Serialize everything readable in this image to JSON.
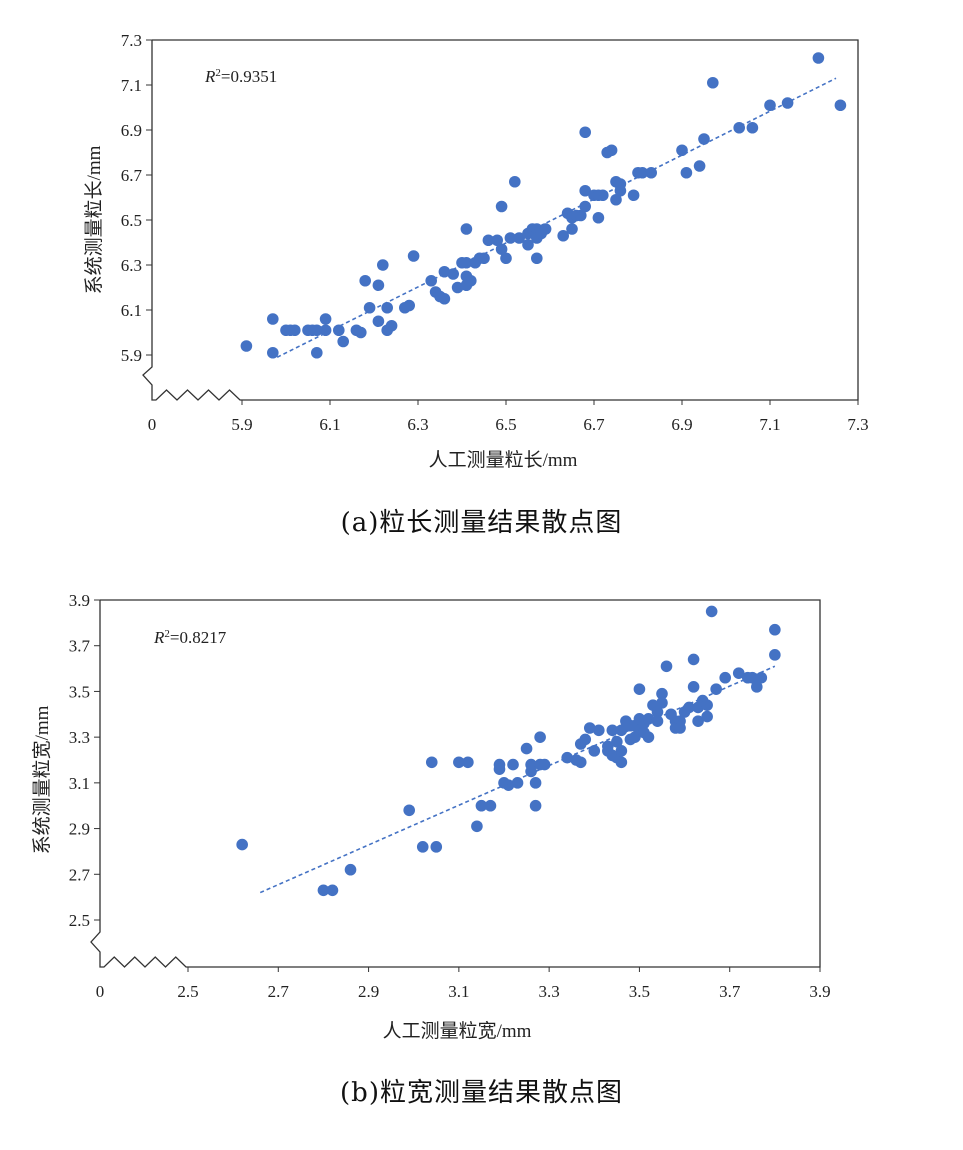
{
  "chart_data": [
    {
      "type": "scatter",
      "caption": "(a)粒长测量结果散点图",
      "xlabel": "人工测量粒长/mm",
      "ylabel": "系统测量粒长/mm",
      "r2_label": "R²=0.9351",
      "r2_prefix": "R",
      "r2_sup": "2",
      "r2_value": "=0.9351",
      "x_origin_label": "0",
      "xlim": [
        5.9,
        7.3
      ],
      "ylim": [
        5.9,
        7.3
      ],
      "x_ticks": [
        "5.9",
        "6.1",
        "6.3",
        "6.5",
        "6.7",
        "6.9",
        "7.1",
        "7.3"
      ],
      "y_ticks": [
        "5.9",
        "6.1",
        "6.3",
        "6.5",
        "6.7",
        "6.9",
        "7.1",
        "7.3"
      ],
      "trendline": {
        "x": [
          5.98,
          7.25
        ],
        "y": [
          5.89,
          7.13
        ]
      },
      "marker_color": "#4472C4",
      "trend_color": "#4472C4",
      "points": [
        [
          5.91,
          5.94
        ],
        [
          5.97,
          6.06
        ],
        [
          5.97,
          5.91
        ],
        [
          6.0,
          6.01
        ],
        [
          6.01,
          6.01
        ],
        [
          6.02,
          6.01
        ],
        [
          6.05,
          6.01
        ],
        [
          6.06,
          6.01
        ],
        [
          6.07,
          6.01
        ],
        [
          6.07,
          5.91
        ],
        [
          6.09,
          6.01
        ],
        [
          6.09,
          6.06
        ],
        [
          6.12,
          6.01
        ],
        [
          6.13,
          5.96
        ],
        [
          6.16,
          6.01
        ],
        [
          6.17,
          6.0
        ],
        [
          6.18,
          6.23
        ],
        [
          6.19,
          6.11
        ],
        [
          6.21,
          6.21
        ],
        [
          6.21,
          6.05
        ],
        [
          6.22,
          6.3
        ],
        [
          6.23,
          6.01
        ],
        [
          6.23,
          6.11
        ],
        [
          6.24,
          6.03
        ],
        [
          6.27,
          6.11
        ],
        [
          6.28,
          6.12
        ],
        [
          6.29,
          6.34
        ],
        [
          6.33,
          6.23
        ],
        [
          6.34,
          6.18
        ],
        [
          6.35,
          6.16
        ],
        [
          6.36,
          6.15
        ],
        [
          6.36,
          6.27
        ],
        [
          6.38,
          6.26
        ],
        [
          6.39,
          6.2
        ],
        [
          6.4,
          6.31
        ],
        [
          6.41,
          6.31
        ],
        [
          6.41,
          6.25
        ],
        [
          6.41,
          6.21
        ],
        [
          6.41,
          6.46
        ],
        [
          6.42,
          6.23
        ],
        [
          6.43,
          6.31
        ],
        [
          6.44,
          6.33
        ],
        [
          6.45,
          6.33
        ],
        [
          6.46,
          6.41
        ],
        [
          6.48,
          6.41
        ],
        [
          6.49,
          6.37
        ],
        [
          6.49,
          6.56
        ],
        [
          6.5,
          6.33
        ],
        [
          6.51,
          6.42
        ],
        [
          6.52,
          6.67
        ],
        [
          6.53,
          6.42
        ],
        [
          6.55,
          6.44
        ],
        [
          6.55,
          6.39
        ],
        [
          6.56,
          6.46
        ],
        [
          6.57,
          6.33
        ],
        [
          6.57,
          6.42
        ],
        [
          6.57,
          6.46
        ],
        [
          6.58,
          6.44
        ],
        [
          6.59,
          6.46
        ],
        [
          6.63,
          6.43
        ],
        [
          6.64,
          6.53
        ],
        [
          6.65,
          6.46
        ],
        [
          6.65,
          6.51
        ],
        [
          6.66,
          6.52
        ],
        [
          6.67,
          6.52
        ],
        [
          6.68,
          6.56
        ],
        [
          6.68,
          6.63
        ],
        [
          6.68,
          6.89
        ],
        [
          6.7,
          6.61
        ],
        [
          6.71,
          6.61
        ],
        [
          6.71,
          6.51
        ],
        [
          6.72,
          6.61
        ],
        [
          6.73,
          6.8
        ],
        [
          6.74,
          6.81
        ],
        [
          6.75,
          6.67
        ],
        [
          6.75,
          6.59
        ],
        [
          6.76,
          6.66
        ],
        [
          6.76,
          6.63
        ],
        [
          6.79,
          6.61
        ],
        [
          6.8,
          6.71
        ],
        [
          6.81,
          6.71
        ],
        [
          6.83,
          6.71
        ],
        [
          6.9,
          6.81
        ],
        [
          6.91,
          6.71
        ],
        [
          6.94,
          6.74
        ],
        [
          6.95,
          6.86
        ],
        [
          6.97,
          7.11
        ],
        [
          7.03,
          6.91
        ],
        [
          7.06,
          6.91
        ],
        [
          7.1,
          7.01
        ],
        [
          7.14,
          7.02
        ],
        [
          7.21,
          7.22
        ],
        [
          7.26,
          7.01
        ]
      ]
    },
    {
      "type": "scatter",
      "caption": "(b)粒宽测量结果散点图",
      "xlabel": "人工测量粒宽/mm",
      "ylabel": "系统测量粒宽/mm",
      "r2_label": "R²=0.8217",
      "r2_prefix": "R",
      "r2_sup": "2",
      "r2_value": "=0.8217",
      "x_origin_label": "0",
      "xlim": [
        2.5,
        3.9
      ],
      "ylim": [
        2.5,
        3.9
      ],
      "x_ticks": [
        "2.5",
        "2.7",
        "2.9",
        "3.1",
        "3.3",
        "3.5",
        "3.7",
        "3.9"
      ],
      "y_ticks": [
        "2.5",
        "2.7",
        "2.9",
        "3.1",
        "3.3",
        "3.5",
        "3.7",
        "3.9"
      ],
      "trendline": {
        "x": [
          2.66,
          3.8
        ],
        "y": [
          2.62,
          3.61
        ]
      },
      "marker_color": "#4472C4",
      "trend_color": "#4472C4",
      "points": [
        [
          2.62,
          2.83
        ],
        [
          2.8,
          2.63
        ],
        [
          2.82,
          2.63
        ],
        [
          2.86,
          2.72
        ],
        [
          2.99,
          2.98
        ],
        [
          3.02,
          2.82
        ],
        [
          3.04,
          3.19
        ],
        [
          3.05,
          2.82
        ],
        [
          3.1,
          3.19
        ],
        [
          3.12,
          3.19
        ],
        [
          3.14,
          2.91
        ],
        [
          3.15,
          3.0
        ],
        [
          3.17,
          3.0
        ],
        [
          3.19,
          3.18
        ],
        [
          3.19,
          3.16
        ],
        [
          3.2,
          3.1
        ],
        [
          3.21,
          3.09
        ],
        [
          3.22,
          3.18
        ],
        [
          3.23,
          3.1
        ],
        [
          3.25,
          3.25
        ],
        [
          3.26,
          3.18
        ],
        [
          3.26,
          3.15
        ],
        [
          3.27,
          3.1
        ],
        [
          3.27,
          3.0
        ],
        [
          3.28,
          3.3
        ],
        [
          3.28,
          3.18
        ],
        [
          3.29,
          3.18
        ],
        [
          3.34,
          3.21
        ],
        [
          3.36,
          3.2
        ],
        [
          3.37,
          3.19
        ],
        [
          3.37,
          3.27
        ],
        [
          3.38,
          3.29
        ],
        [
          3.39,
          3.34
        ],
        [
          3.4,
          3.24
        ],
        [
          3.41,
          3.33
        ],
        [
          3.43,
          3.26
        ],
        [
          3.43,
          3.24
        ],
        [
          3.44,
          3.33
        ],
        [
          3.44,
          3.22
        ],
        [
          3.45,
          3.28
        ],
        [
          3.45,
          3.21
        ],
        [
          3.46,
          3.19
        ],
        [
          3.46,
          3.24
        ],
        [
          3.46,
          3.33
        ],
        [
          3.47,
          3.37
        ],
        [
          3.48,
          3.35
        ],
        [
          3.48,
          3.29
        ],
        [
          3.49,
          3.35
        ],
        [
          3.49,
          3.3
        ],
        [
          3.5,
          3.33
        ],
        [
          3.5,
          3.38
        ],
        [
          3.5,
          3.51
        ],
        [
          3.51,
          3.36
        ],
        [
          3.51,
          3.32
        ],
        [
          3.52,
          3.3
        ],
        [
          3.52,
          3.38
        ],
        [
          3.53,
          3.44
        ],
        [
          3.54,
          3.41
        ],
        [
          3.54,
          3.37
        ],
        [
          3.55,
          3.49
        ],
        [
          3.55,
          3.45
        ],
        [
          3.56,
          3.61
        ],
        [
          3.57,
          3.4
        ],
        [
          3.58,
          3.37
        ],
        [
          3.58,
          3.34
        ],
        [
          3.59,
          3.37
        ],
        [
          3.59,
          3.34
        ],
        [
          3.6,
          3.41
        ],
        [
          3.61,
          3.43
        ],
        [
          3.62,
          3.52
        ],
        [
          3.62,
          3.64
        ],
        [
          3.63,
          3.37
        ],
        [
          3.63,
          3.43
        ],
        [
          3.64,
          3.46
        ],
        [
          3.65,
          3.39
        ],
        [
          3.65,
          3.44
        ],
        [
          3.66,
          3.85
        ],
        [
          3.67,
          3.51
        ],
        [
          3.69,
          3.56
        ],
        [
          3.72,
          3.58
        ],
        [
          3.74,
          3.56
        ],
        [
          3.75,
          3.56
        ],
        [
          3.76,
          3.52
        ],
        [
          3.77,
          3.56
        ],
        [
          3.8,
          3.77
        ],
        [
          3.8,
          3.66
        ]
      ]
    }
  ]
}
